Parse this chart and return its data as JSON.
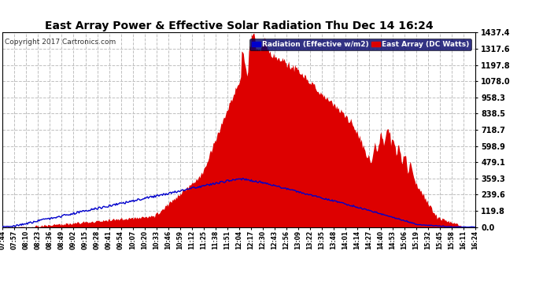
{
  "title": "East Array Power & Effective Solar Radiation Thu Dec 14 16:24",
  "copyright": "Copyright 2017 Cartronics.com",
  "legend_blue": "Radiation (Effective w/m2)",
  "legend_red": "East Array (DC Watts)",
  "ymax": 1437.4,
  "yticks": [
    0.0,
    119.8,
    239.6,
    359.3,
    479.1,
    598.9,
    718.7,
    838.5,
    958.3,
    1078.0,
    1197.8,
    1317.6,
    1437.4
  ],
  "bg_color": "#ffffff",
  "plot_bg_color": "#ffffff",
  "grid_color": "#c0c0c0",
  "title_color": "#000000",
  "red_color": "#dd0000",
  "blue_color": "#0000cc",
  "x_labels": [
    "07:44",
    "07:57",
    "08:10",
    "08:23",
    "08:36",
    "08:49",
    "09:02",
    "09:15",
    "09:28",
    "09:41",
    "09:54",
    "10:07",
    "10:20",
    "10:33",
    "10:46",
    "10:59",
    "11:12",
    "11:25",
    "11:38",
    "11:51",
    "12:04",
    "12:17",
    "12:30",
    "12:43",
    "12:56",
    "13:09",
    "13:22",
    "13:35",
    "13:48",
    "14:01",
    "14:14",
    "14:27",
    "14:40",
    "14:53",
    "15:06",
    "15:19",
    "15:32",
    "15:45",
    "15:58",
    "16:11",
    "16:24"
  ]
}
